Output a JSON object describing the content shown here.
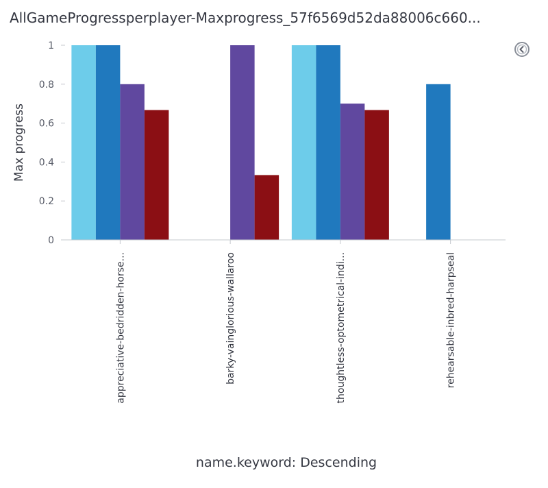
{
  "title": "AllGameProgressperplayer-Maxprogress_57f6569d52da88006c660...",
  "legend_toggle_icon": "legend-toggle-icon",
  "chart_data": {
    "type": "bar",
    "title": "AllGameProgressperplayer-Maxprogress_57f6569d52da88006c660...",
    "ylabel": "Max progress",
    "xlabel": "name.keyword: Descending",
    "ylim": [
      0,
      1
    ],
    "yticks": [
      0,
      0.2,
      0.4,
      0.6,
      0.8,
      1
    ],
    "grid": false,
    "categories": [
      "appreciative-bedridden-horse...",
      "barky-vainglorious-wallaroo",
      "thoughtless-optometrical-indi...",
      "rehearsable-inbred-harpseal"
    ],
    "series": [
      {
        "color": "#6dccea",
        "values": [
          1,
          null,
          1,
          null
        ]
      },
      {
        "color": "#2079be",
        "values": [
          1,
          null,
          1,
          0.8
        ]
      },
      {
        "color": "#60489f",
        "values": [
          0.8,
          1,
          0.7,
          null
        ]
      },
      {
        "color": "#8b0f14",
        "values": [
          0.667,
          0.333,
          0.667,
          null
        ]
      }
    ]
  }
}
